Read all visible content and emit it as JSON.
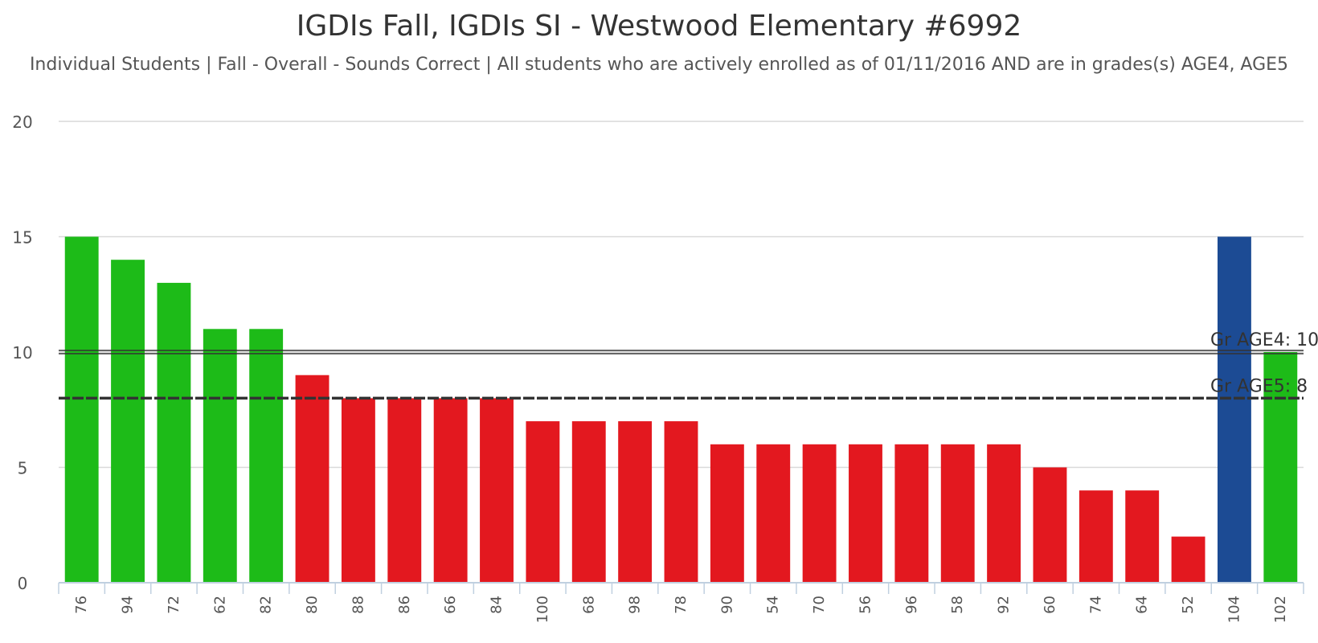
{
  "chart_data": {
    "type": "bar",
    "title": "IGDIs Fall, IGDIs SI - Westwood Elementary #6992",
    "subtitle": "Individual Students | Fall - Overall - Sounds Correct | All students who are actively enrolled as of 01/11/2016 AND are in grades(s) AGE4, AGE5",
    "categories": [
      "76",
      "94",
      "72",
      "62",
      "82",
      "80",
      "88",
      "86",
      "66",
      "84",
      "100",
      "68",
      "98",
      "78",
      "90",
      "54",
      "70",
      "56",
      "96",
      "58",
      "92",
      "60",
      "74",
      "64",
      "52",
      "104",
      "102"
    ],
    "values": [
      15,
      14,
      13,
      11,
      11,
      9,
      8,
      8,
      8,
      8,
      7,
      7,
      7,
      7,
      6,
      6,
      6,
      6,
      6,
      6,
      6,
      5,
      4,
      4,
      2,
      15,
      10
    ],
    "bar_colors": [
      "#1dbb18",
      "#1dbb18",
      "#1dbb18",
      "#1dbb18",
      "#1dbb18",
      "#e3181f",
      "#e3181f",
      "#e3181f",
      "#e3181f",
      "#e3181f",
      "#e3181f",
      "#e3181f",
      "#e3181f",
      "#e3181f",
      "#e3181f",
      "#e3181f",
      "#e3181f",
      "#e3181f",
      "#e3181f",
      "#e3181f",
      "#e3181f",
      "#e3181f",
      "#e3181f",
      "#e3181f",
      "#e3181f",
      "#1c4b94",
      "#1dbb18"
    ],
    "ylim": [
      0,
      20
    ],
    "yticks": [
      0,
      5,
      10,
      15,
      20
    ],
    "grid": true,
    "reference_lines": [
      {
        "label": "Gr AGE4: 10",
        "value": 10,
        "style": "double"
      },
      {
        "label": "Gr AGE5: 8",
        "value": 8,
        "style": "dashed"
      }
    ]
  }
}
